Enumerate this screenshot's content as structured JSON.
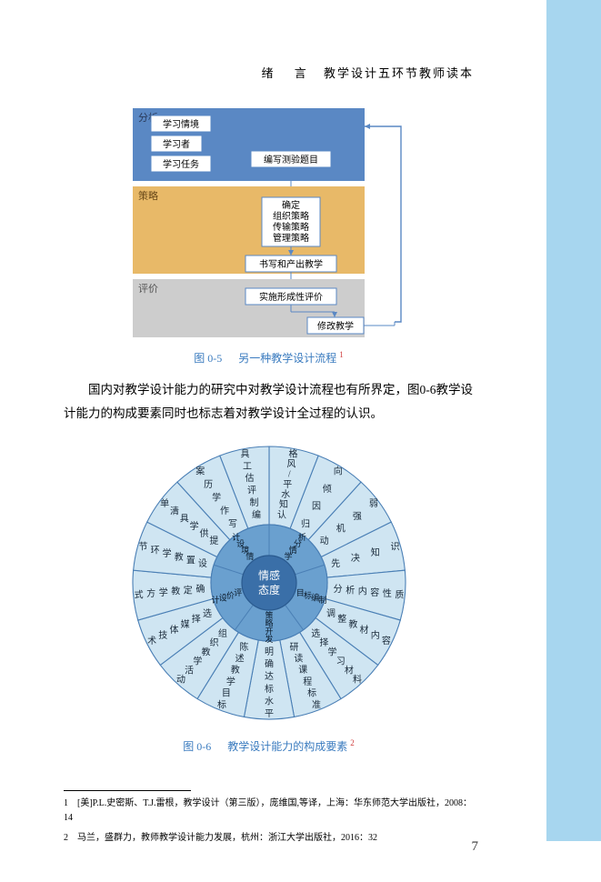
{
  "header": {
    "xu": "绪",
    "yan": "言",
    "title": "教学设计五环节教师读本"
  },
  "flowchart": {
    "rows": {
      "analysis": {
        "label": "分析",
        "bg": "#5a88c4",
        "items": [
          "学习情境",
          "学习者",
          "学习任务"
        ],
        "action": "编写测验题目"
      },
      "strategy": {
        "label": "策略",
        "bg": "#e4b05a",
        "center": "确定\n组织策略\n传输策略\n管理策略",
        "action": "书写和产出教学"
      },
      "evaluate": {
        "label": "评价",
        "bg": "#c7c7c7",
        "action1": "实施形成性评价",
        "action2": "修改教学"
      }
    },
    "box_fill": "#ffffff",
    "box_stroke": "#5a88c4",
    "arrow_color": "#5a88c4",
    "caption_prefix": "图 0-5",
    "caption_text": "另一种教学设计流程",
    "caption_sup": "1"
  },
  "body": {
    "p1": "国内对教学设计能力的研究中对教学设计流程也有所界定，图0-6教学设计能力的构成要素同时也标志着对教学设计全过程的认识。"
  },
  "wheel": {
    "center_top": "情感",
    "center_bottom": "态度",
    "center_fill": "#3a6fa8",
    "midring_fill": "#6aa0cf",
    "mid_labels": [
      "学情分析",
      "目标编制",
      "策略开发",
      "评价设计",
      "情境设计"
    ],
    "outer_fill": "#cfe5f2",
    "outer_stroke": "#4a7fb5",
    "outer_segments": [
      "认知水平/风格",
      "归因倾向",
      "动机强弱",
      "先决知识",
      "分析内容性质",
      "调整教材内容",
      "选择学习材料",
      "研读课程标准",
      "明确达标水平",
      "陈述教学目标",
      "组织教学活动",
      "选择媒体技术",
      "确定教学方式",
      "设置教学环节",
      "提供学具清单",
      "写作学历案",
      "编制评估工具"
    ],
    "caption_prefix": "图 0-6",
    "caption_text": "教学设计能力的构成要素",
    "caption_sup": "2"
  },
  "footnotes": {
    "fn1": "1　[美]P.L.史密斯、T.J.雷根，教学设计（第三版），庞维国,等译，上海：华东师范大学出版社，2008：14",
    "fn2": "2　马兰，盛群力，教师教学设计能力发展，杭州：浙江大学出版社，2016：32"
  },
  "page_number": "7"
}
